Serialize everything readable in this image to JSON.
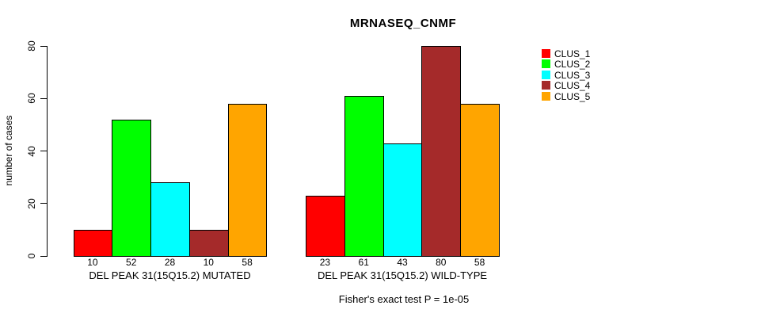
{
  "chart_data": {
    "type": "bar",
    "title": "MRNASEQ_CNMF",
    "ylabel": "number of cases",
    "xlabel": "",
    "ylim": [
      0,
      80
    ],
    "yticks": [
      0,
      20,
      40,
      60,
      80
    ],
    "grid": false,
    "legend_position": "right",
    "series_names": [
      "CLUS_1",
      "CLUS_2",
      "CLUS_3",
      "CLUS_4",
      "CLUS_5"
    ],
    "series_colors": [
      "#FF0000",
      "#00FF00",
      "#00FFFF",
      "#A52A2A",
      "#FFA500"
    ],
    "groups": [
      {
        "label": "DEL PEAK 31(15Q15.2) MUTATED",
        "values": [
          10,
          52,
          28,
          10,
          58
        ]
      },
      {
        "label": "DEL PEAK 31(15Q15.2) WILD-TYPE",
        "values": [
          23,
          61,
          43,
          80,
          58
        ]
      }
    ],
    "annotation": "Fisher's exact test P = 1e-05"
  }
}
